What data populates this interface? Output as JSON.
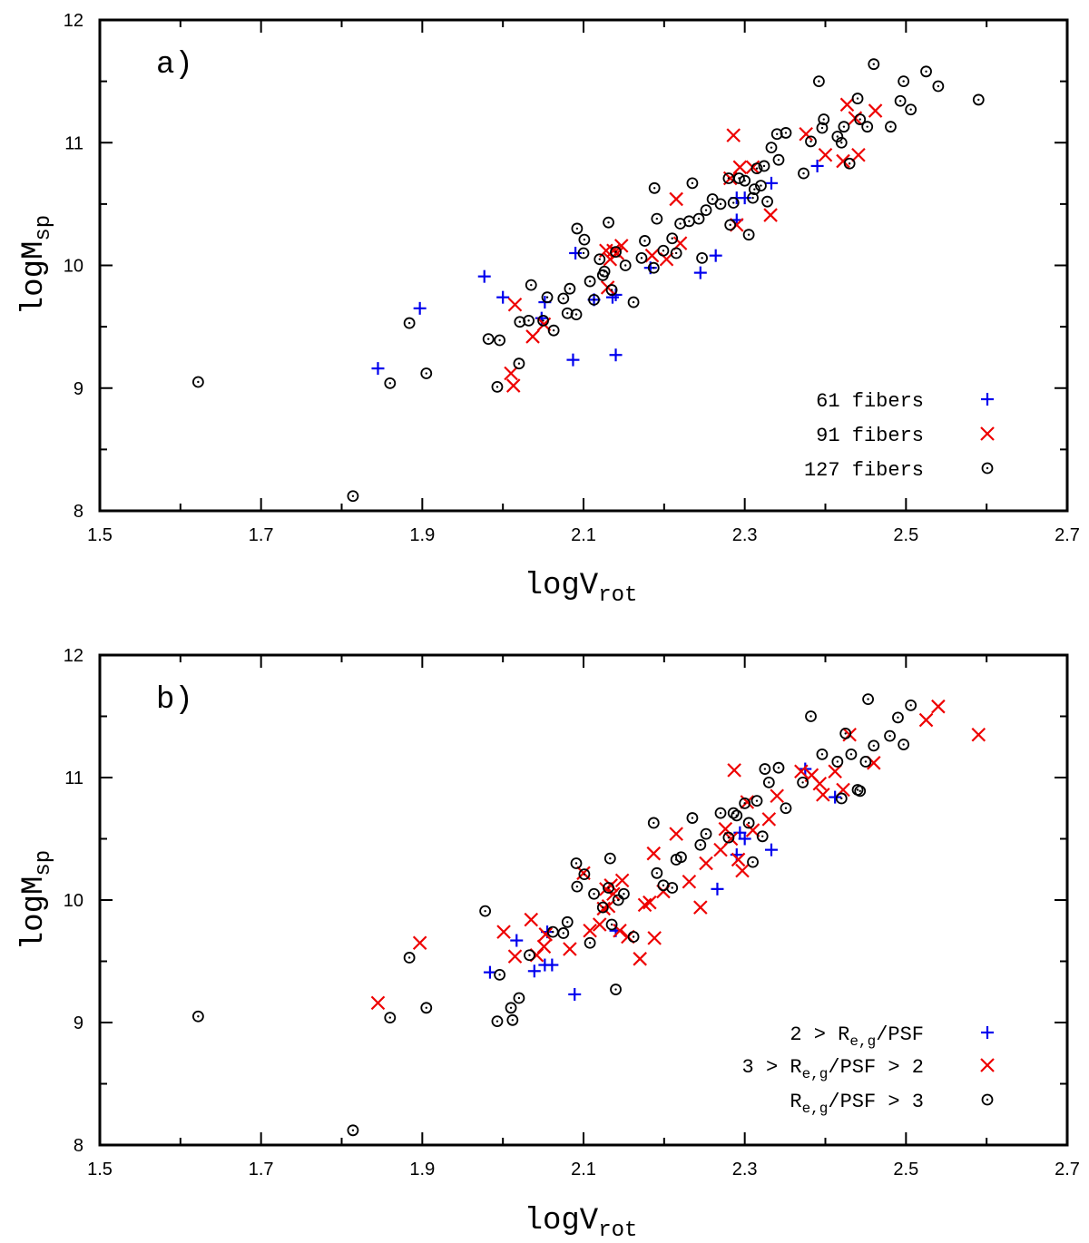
{
  "colors": {
    "plus": "#0000ee",
    "cross": "#ee0000",
    "circle": "#000000",
    "axes": "#000000"
  },
  "chart_data": [
    {
      "type": "scatter",
      "panel_label": "a)",
      "xlabel": "logV",
      "xlabel_sub": "rot",
      "ylabel": "logM",
      "ylabel_sub": "sp",
      "xlim": [
        1.5,
        2.7
      ],
      "ylim": [
        8,
        12
      ],
      "xticks": [
        "1.5",
        "1.7",
        "1.9",
        "2.1",
        "2.3",
        "2.5",
        "2.7"
      ],
      "yticks": [
        "8",
        "9",
        "10",
        "11",
        "12"
      ],
      "legend_position": "bottom-right",
      "series": [
        {
          "name": "61 fibers",
          "legend": [
            {
              "text": "61 fibers"
            }
          ],
          "marker": "plus",
          "x": [
            1.845,
            1.897,
            1.977,
            2.0,
            2.048,
            2.052,
            2.087,
            2.09,
            2.113,
            2.136,
            2.14,
            2.14,
            2.183,
            2.245,
            2.264,
            2.29,
            2.29,
            2.3,
            2.333,
            2.39
          ],
          "y": [
            9.16,
            9.65,
            9.91,
            9.74,
            9.57,
            9.7,
            9.23,
            10.1,
            9.72,
            9.74,
            9.76,
            9.27,
            9.98,
            9.94,
            10.08,
            10.37,
            10.55,
            10.55,
            10.67,
            10.81
          ]
        },
        {
          "name": "91 fibers",
          "legend": [
            {
              "text": "91 fibers"
            }
          ],
          "marker": "cross",
          "x": [
            2.01,
            2.013,
            2.015,
            2.037,
            2.051,
            2.128,
            2.13,
            2.133,
            2.137,
            2.142,
            2.147,
            2.185,
            2.203,
            2.215,
            2.22,
            2.282,
            2.286,
            2.29,
            2.294,
            2.31,
            2.332,
            2.376,
            2.4,
            2.422,
            2.427,
            2.437,
            2.441,
            2.462
          ],
          "y": [
            9.12,
            9.02,
            9.68,
            9.42,
            9.52,
            10.12,
            9.82,
            10.05,
            10.12,
            10.1,
            10.16,
            10.08,
            10.05,
            10.54,
            10.18,
            10.71,
            11.06,
            10.33,
            10.8,
            10.8,
            10.41,
            11.07,
            10.9,
            10.85,
            11.31,
            11.2,
            10.9,
            11.26
          ]
        },
        {
          "name": "127 fibers",
          "legend": [
            {
              "text": "127 fibers"
            }
          ],
          "marker": "circle",
          "x": [
            1.622,
            1.814,
            1.86,
            1.884,
            1.905,
            1.982,
            1.993,
            1.996,
            2.02,
            2.021,
            2.032,
            2.035,
            2.05,
            2.055,
            2.063,
            2.075,
            2.08,
            2.083,
            2.091,
            2.092,
            2.1,
            2.101,
            2.108,
            2.113,
            2.12,
            2.124,
            2.126,
            2.131,
            2.135,
            2.14,
            2.152,
            2.162,
            2.172,
            2.176,
            2.187,
            2.188,
            2.191,
            2.199,
            2.21,
            2.215,
            2.22,
            2.231,
            2.235,
            2.243,
            2.247,
            2.252,
            2.26,
            2.27,
            2.28,
            2.282,
            2.286,
            2.293,
            2.3,
            2.305,
            2.31,
            2.312,
            2.315,
            2.32,
            2.324,
            2.328,
            2.333,
            2.34,
            2.342,
            2.351,
            2.373,
            2.382,
            2.392,
            2.396,
            2.398,
            2.415,
            2.42,
            2.423,
            2.43,
            2.44,
            2.443,
            2.452,
            2.46,
            2.481,
            2.493,
            2.497,
            2.506,
            2.525,
            2.54,
            2.59
          ],
          "y": [
            9.05,
            8.12,
            9.04,
            9.53,
            9.12,
            9.4,
            9.01,
            9.39,
            9.2,
            9.54,
            9.55,
            9.84,
            9.55,
            9.74,
            9.47,
            9.73,
            9.61,
            9.81,
            9.6,
            10.3,
            10.1,
            10.21,
            9.87,
            9.72,
            10.05,
            9.92,
            9.95,
            10.35,
            9.8,
            10.11,
            10.0,
            9.7,
            10.06,
            10.2,
            9.98,
            10.63,
            10.38,
            10.12,
            10.22,
            10.1,
            10.34,
            10.36,
            10.67,
            10.38,
            10.06,
            10.45,
            10.54,
            10.5,
            10.71,
            10.33,
            10.51,
            10.71,
            10.69,
            10.25,
            10.55,
            10.62,
            10.79,
            10.65,
            10.81,
            10.52,
            10.96,
            11.07,
            10.86,
            11.08,
            10.75,
            11.01,
            11.5,
            11.12,
            11.19,
            11.05,
            11.0,
            11.13,
            10.83,
            11.36,
            11.19,
            11.13,
            11.64,
            11.13,
            11.34,
            11.5,
            11.27,
            11.58,
            11.46,
            11.35
          ]
        }
      ]
    },
    {
      "type": "scatter",
      "panel_label": "b)",
      "xlabel": "logV",
      "xlabel_sub": "rot",
      "ylabel": "logM",
      "ylabel_sub": "sp",
      "xlim": [
        1.5,
        2.7
      ],
      "ylim": [
        8,
        12
      ],
      "xticks": [
        "1.5",
        "1.7",
        "1.9",
        "2.1",
        "2.3",
        "2.5",
        "2.7"
      ],
      "yticks": [
        "8",
        "9",
        "10",
        "11",
        "12"
      ],
      "legend_position": "bottom-right",
      "series": [
        {
          "name": "2 > Re,g/PSF",
          "legend": [
            {
              "text": "2 > R"
            },
            {
              "text": "e,g",
              "sub": true
            },
            {
              "text": "/PSF"
            }
          ],
          "marker": "plus",
          "x": [
            1.984,
            2.017,
            2.039,
            2.052,
            2.055,
            2.061,
            2.089,
            2.14,
            2.266,
            2.29,
            2.294,
            2.3,
            2.333,
            2.375,
            2.412
          ],
          "y": [
            9.41,
            9.67,
            9.42,
            9.47,
            9.74,
            9.47,
            9.23,
            9.75,
            10.09,
            10.37,
            10.55,
            10.5,
            10.41,
            11.07,
            10.84
          ]
        },
        {
          "name": "3 > Re,g/PSF > 2",
          "legend": [
            {
              "text": "3 > R"
            },
            {
              "text": "e,g",
              "sub": true
            },
            {
              "text": "/PSF > 2"
            }
          ],
          "marker": "cross",
          "x": [
            1.845,
            1.897,
            2.001,
            2.015,
            2.035,
            2.042,
            2.051,
            2.053,
            2.083,
            2.1,
            2.108,
            2.12,
            2.125,
            2.128,
            2.131,
            2.134,
            2.137,
            2.145,
            2.148,
            2.155,
            2.17,
            2.176,
            2.182,
            2.187,
            2.188,
            2.199,
            2.215,
            2.231,
            2.245,
            2.252,
            2.27,
            2.276,
            2.283,
            2.287,
            2.292,
            2.297,
            2.303,
            2.31,
            2.33,
            2.34,
            2.37,
            2.383,
            2.393,
            2.397,
            2.412,
            2.422,
            2.43,
            2.46,
            2.525,
            2.54,
            2.59
          ],
          "y": [
            9.16,
            9.65,
            9.74,
            9.54,
            9.84,
            9.55,
            9.62,
            9.72,
            9.6,
            10.22,
            9.75,
            9.8,
            9.93,
            10.09,
            9.95,
            10.12,
            10.05,
            9.75,
            10.16,
            9.7,
            9.52,
            9.96,
            9.98,
            10.38,
            9.69,
            10.07,
            10.54,
            10.15,
            9.94,
            10.3,
            10.41,
            10.58,
            10.5,
            11.06,
            10.33,
            10.24,
            10.8,
            10.57,
            10.66,
            10.85,
            11.05,
            11.02,
            10.95,
            10.86,
            11.05,
            10.9,
            11.35,
            11.12,
            11.47,
            11.58,
            11.35
          ]
        },
        {
          "name": "Re,g/PSF > 3",
          "legend": [
            {
              "text": "R"
            },
            {
              "text": "e,g",
              "sub": true
            },
            {
              "text": "/PSF > 3"
            }
          ],
          "marker": "circle",
          "x": [
            1.622,
            1.814,
            1.86,
            1.884,
            1.905,
            1.978,
            1.993,
            1.996,
            2.01,
            2.012,
            2.02,
            2.033,
            2.062,
            2.075,
            2.08,
            2.091,
            2.092,
            2.101,
            2.108,
            2.113,
            2.124,
            2.131,
            2.133,
            2.135,
            2.14,
            2.143,
            2.15,
            2.162,
            2.187,
            2.191,
            2.199,
            2.21,
            2.215,
            2.221,
            2.235,
            2.245,
            2.252,
            2.27,
            2.28,
            2.286,
            2.29,
            2.3,
            2.305,
            2.31,
            2.315,
            2.322,
            2.325,
            2.33,
            2.342,
            2.351,
            2.372,
            2.382,
            2.396,
            2.415,
            2.42,
            2.425,
            2.432,
            2.44,
            2.443,
            2.45,
            2.453,
            2.46,
            2.48,
            2.49,
            2.497,
            2.506
          ],
          "y": [
            9.05,
            8.12,
            9.04,
            9.53,
            9.12,
            9.91,
            9.01,
            9.39,
            9.12,
            9.02,
            9.2,
            9.55,
            9.74,
            9.73,
            9.82,
            10.3,
            10.11,
            10.21,
            9.65,
            10.05,
            9.94,
            10.1,
            10.34,
            9.8,
            9.27,
            10.0,
            10.05,
            9.7,
            10.63,
            10.22,
            10.12,
            10.1,
            10.33,
            10.35,
            10.67,
            10.45,
            10.54,
            10.71,
            10.51,
            10.71,
            10.69,
            10.79,
            10.63,
            10.31,
            10.81,
            10.52,
            11.07,
            10.96,
            11.08,
            10.75,
            10.96,
            11.5,
            11.19,
            11.13,
            10.83,
            11.36,
            11.19,
            10.9,
            10.89,
            11.13,
            11.64,
            11.26,
            11.34,
            11.49,
            11.27,
            11.59
          ]
        }
      ]
    }
  ]
}
